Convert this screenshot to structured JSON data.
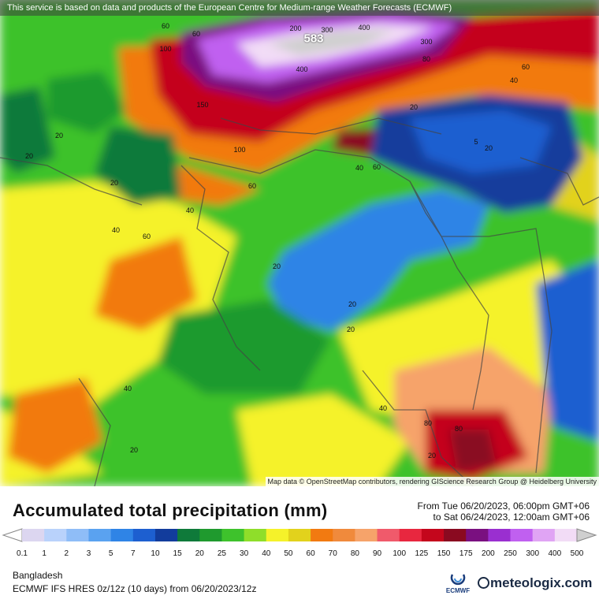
{
  "notice": "This service is based on data and products of the European Centre for Medium-range Weather Forecasts (ECMWF)",
  "attribution": "Map data © OpenStreetMap contributors, rendering GIScience Research Group @ Heidelberg University",
  "contour_labels": [
    "60",
    "60",
    "200",
    "300",
    "400",
    "300",
    "80",
    "100",
    "400",
    "150",
    "60",
    "40",
    "20",
    "5",
    "20",
    "20",
    "20",
    "100",
    "40",
    "60",
    "60",
    "40",
    "20",
    "40",
    "60",
    "20",
    "20",
    "20",
    "40",
    "40",
    "20",
    "80",
    "80",
    "20"
  ],
  "max_label": "583",
  "title": "Accumulated total precipitation (mm)",
  "period": {
    "from": "From Tue 06/20/2023, 06:00pm GMT+06",
    "to": "to Sat 06/24/2023, 12:00am GMT+06"
  },
  "scale": {
    "ticks": [
      "0.1",
      "1",
      "2",
      "3",
      "5",
      "7",
      "10",
      "15",
      "20",
      "25",
      "30",
      "40",
      "50",
      "60",
      "70",
      "80",
      "90",
      "100",
      "125",
      "150",
      "175",
      "200",
      "250",
      "300",
      "400",
      "500"
    ],
    "colors": [
      "#dcd6f0",
      "#b9d2fb",
      "#8fbdf7",
      "#5aa2f0",
      "#2f84e6",
      "#1d5fd0",
      "#123c9c",
      "#0f7a3a",
      "#1f9a2e",
      "#3ec22c",
      "#8fde2a",
      "#f5f22a",
      "#e2d21c",
      "#f27a11",
      "#f08a3c",
      "#f6a36a",
      "#f05a6b",
      "#e8273f",
      "#c4061c",
      "#8a0a20",
      "#7a1080",
      "#9a2fd0",
      "#c060f0",
      "#e0a4f4",
      "#f2dcf6",
      "#cfcfcf"
    ]
  },
  "region": "Bangladesh",
  "run": "ECMWF IFS HRES 0z/12z (10 days)  from  06/20/2023/12z",
  "ecmwf_label": "ECMWF",
  "brand": "meteologix.com"
}
